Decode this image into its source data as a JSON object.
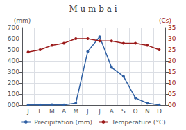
{
  "chart_data": {
    "type": "line",
    "title": "M u m b a i",
    "categories": [
      "J",
      "F",
      "M",
      "A",
      "M",
      "J",
      "J",
      "A",
      "S",
      "O",
      "N",
      "D"
    ],
    "series": [
      {
        "name": "Precipitation (mm)",
        "color": "#2e5fa3",
        "marker": "circle",
        "values": [
          2,
          2,
          3,
          1,
          18,
          485,
          617,
          340,
          260,
          64,
          17,
          2
        ]
      },
      {
        "name": "Temperature (°C)",
        "color": "#9b1a1a",
        "marker": "circle",
        "axis": "y2",
        "values": [
          24,
          25,
          27,
          28,
          30,
          30,
          29,
          29,
          28,
          28,
          27,
          25
        ]
      }
    ],
    "ylabel": "(mm)",
    "y2label": "(Cs)",
    "ylim": [
      0,
      700
    ],
    "yticks": [
      {
        "value": 0,
        "label": "000"
      },
      {
        "value": 100,
        "label": "100"
      },
      {
        "value": 200,
        "label": "200"
      },
      {
        "value": 300,
        "label": "300"
      },
      {
        "value": 400,
        "label": "400"
      },
      {
        "value": 500,
        "label": "500"
      },
      {
        "value": 600,
        "label": "600"
      },
      {
        "value": 700,
        "label": "700"
      }
    ],
    "y2lim": [
      0,
      35
    ],
    "y2ticks": [
      {
        "value": 0,
        "label": "00"
      },
      {
        "value": 5,
        "label": "05"
      },
      {
        "value": 10,
        "label": "10"
      },
      {
        "value": 15,
        "label": "15"
      },
      {
        "value": 20,
        "label": "20"
      },
      {
        "value": 25,
        "label": "25"
      },
      {
        "value": 30,
        "label": "30"
      },
      {
        "value": 35,
        "label": "35"
      }
    ],
    "grid": true,
    "legend": "bottom"
  }
}
